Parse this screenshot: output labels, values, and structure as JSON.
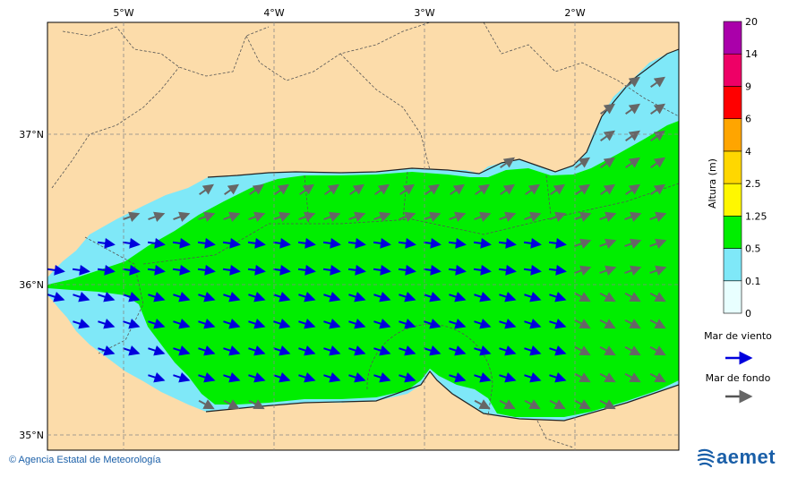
{
  "map": {
    "lon_labels": [
      "5°W",
      "4°W",
      "3°W",
      "2°W"
    ],
    "lat_labels": [
      "37°N",
      "36°N",
      "35°N"
    ],
    "extent": {
      "lon": [
        -5.5,
        -1.2
      ],
      "lat": [
        34.9,
        37.75
      ]
    }
  },
  "legend": {
    "title": "Altura (m)",
    "levels": [
      "0",
      "0.1",
      "0.5",
      "1.25",
      "2.5",
      "4",
      "6",
      "9",
      "14",
      "20"
    ],
    "colors": [
      "#e8ffff",
      "#7fe8f8",
      "#00ee00",
      "#fff700",
      "#ffd700",
      "#ffa500",
      "#ff0000",
      "#ee0066",
      "#aa00aa"
    ],
    "wind_sea_label": "Mar de viento",
    "wind_sea_color": "#0000dd",
    "swell_label": "Mar de fondo",
    "swell_color": "#555555"
  },
  "colors": {
    "land": "#fcdcaa",
    "sea_low": "#7fe8f8",
    "sea_mid": "#00ee00"
  },
  "footer": {
    "credit": "© Agencia Estatal de Meteorología",
    "logo": "aemet",
    "logo_icon": "aemet-swirl-icon"
  }
}
